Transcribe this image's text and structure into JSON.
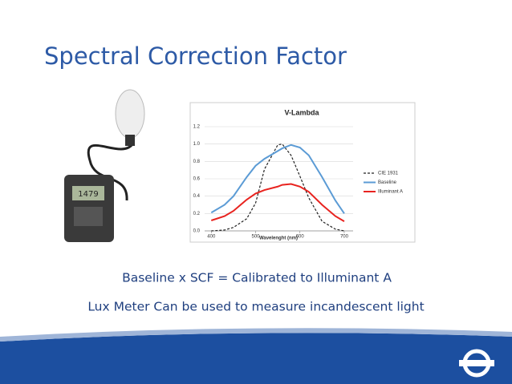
{
  "title": "Spectral Correction Factor",
  "lines": [
    "Baseline x SCF = Calibrated to Illuminant A",
    "Lux Meter Can be used to measure incandescent light"
  ],
  "chart_data": {
    "type": "line",
    "title": "V-Lambda",
    "x_label": "Wavelenght (nm)",
    "x": [
      400,
      430,
      450,
      480,
      500,
      520,
      550,
      560,
      580,
      600,
      620,
      650,
      680,
      700
    ],
    "series": [
      {
        "name": "CIE 1931",
        "color": "#222222",
        "dashed": true,
        "values": [
          0,
          0.01,
          0.04,
          0.14,
          0.32,
          0.71,
          0.99,
          1.0,
          0.87,
          0.63,
          0.38,
          0.11,
          0.02,
          0
        ]
      },
      {
        "name": "Baseline",
        "color": "#5b9bd5",
        "dashed": false,
        "values": [
          0.21,
          0.3,
          0.4,
          0.62,
          0.75,
          0.83,
          0.92,
          0.95,
          0.99,
          0.96,
          0.87,
          0.62,
          0.35,
          0.2
        ]
      },
      {
        "name": "Illuminant A",
        "color": "#e8231f",
        "dashed": false,
        "values": [
          0.12,
          0.17,
          0.23,
          0.36,
          0.43,
          0.47,
          0.51,
          0.53,
          0.54,
          0.51,
          0.45,
          0.3,
          0.17,
          0.11
        ]
      }
    ],
    "xlim": [
      385,
      720
    ],
    "xticks": [
      400,
      500,
      600,
      700
    ],
    "ylim": [
      0,
      1.2
    ],
    "yticks": [
      {
        "value": 0,
        "label": "0.0"
      },
      0.2,
      0.4,
      0.6,
      0.8,
      {
        "value": 1,
        "label": "1.0"
      },
      1.2
    ],
    "grid": true,
    "legend": "right"
  }
}
